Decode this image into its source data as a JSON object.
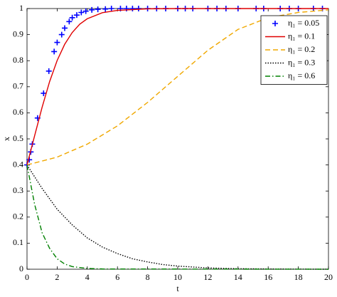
{
  "chart_data": {
    "type": "line",
    "xlabel": "t",
    "ylabel": "x",
    "xlim": [
      0,
      20
    ],
    "ylim": [
      0,
      1
    ],
    "xticks": [
      0,
      2,
      4,
      6,
      8,
      10,
      12,
      14,
      16,
      18,
      20
    ],
    "yticks": [
      0,
      0.1,
      0.2,
      0.3,
      0.4,
      0.5,
      0.6,
      0.7,
      0.8,
      0.9,
      1
    ],
    "legend": "upper-right",
    "series": [
      {
        "name": "η₁ = 0.05",
        "color": "#0000ff",
        "marker": "+",
        "dash": "none",
        "x": [
          0,
          0.15,
          0.25,
          0.35,
          0.7,
          1.1,
          1.45,
          1.8,
          2.0,
          2.3,
          2.5,
          2.8,
          3.0,
          3.3,
          3.6,
          3.9,
          4.3,
          4.7,
          5.2,
          5.6,
          6.2,
          6.6,
          7.0,
          7.4,
          8.0,
          8.6,
          9.2,
          10.0,
          10.5,
          11.0,
          12.0,
          12.6,
          13.2,
          14.0,
          15.2,
          15.7,
          16.8,
          17.4,
          18.0,
          19.0,
          19.6
        ],
        "values": [
          0.4,
          0.42,
          0.45,
          0.48,
          0.58,
          0.675,
          0.76,
          0.835,
          0.87,
          0.9,
          0.925,
          0.95,
          0.965,
          0.975,
          0.985,
          0.99,
          0.995,
          0.997,
          0.998,
          1,
          1,
          1,
          1,
          1,
          1,
          1,
          1,
          1,
          1,
          1,
          1,
          1,
          1,
          1,
          1,
          1,
          1,
          1,
          1,
          1,
          1
        ]
      },
      {
        "name": "η₁ = 0.1",
        "color": "#e00000",
        "marker": "none",
        "dash": "solid",
        "x": [
          0,
          0.5,
          1,
          1.5,
          2,
          2.5,
          3,
          3.5,
          4,
          5,
          6,
          8,
          10,
          20
        ],
        "values": [
          0.4,
          0.511,
          0.621,
          0.72,
          0.801,
          0.863,
          0.908,
          0.94,
          0.961,
          0.984,
          0.993,
          0.999,
          1,
          1
        ]
      },
      {
        "name": "η₁ = 0.2",
        "color": "#f0a800",
        "marker": "none",
        "dash": "dashed",
        "x": [
          0,
          2,
          4,
          6,
          8,
          10,
          12,
          14,
          16,
          18,
          20
        ],
        "values": [
          0.4,
          0.43,
          0.48,
          0.55,
          0.64,
          0.74,
          0.84,
          0.92,
          0.965,
          0.985,
          0.995
        ]
      },
      {
        "name": "η₁ = 0.3",
        "color": "#000000",
        "marker": "none",
        "dash": "dotted",
        "x": [
          0,
          1,
          2,
          3,
          4,
          5,
          6,
          7,
          8,
          9,
          10,
          12,
          14,
          16,
          20
        ],
        "values": [
          0.4,
          0.31,
          0.23,
          0.17,
          0.12,
          0.085,
          0.06,
          0.04,
          0.028,
          0.018,
          0.012,
          0.005,
          0.002,
          0.001,
          0
        ]
      },
      {
        "name": "η₁ = 0.6",
        "color": "#008000",
        "marker": "none",
        "dash": "dashdot",
        "x": [
          0,
          0.5,
          1,
          1.5,
          2,
          2.5,
          3,
          4,
          5,
          20
        ],
        "values": [
          0.4,
          0.25,
          0.14,
          0.08,
          0.04,
          0.02,
          0.01,
          0.003,
          0.001,
          0
        ]
      }
    ]
  }
}
